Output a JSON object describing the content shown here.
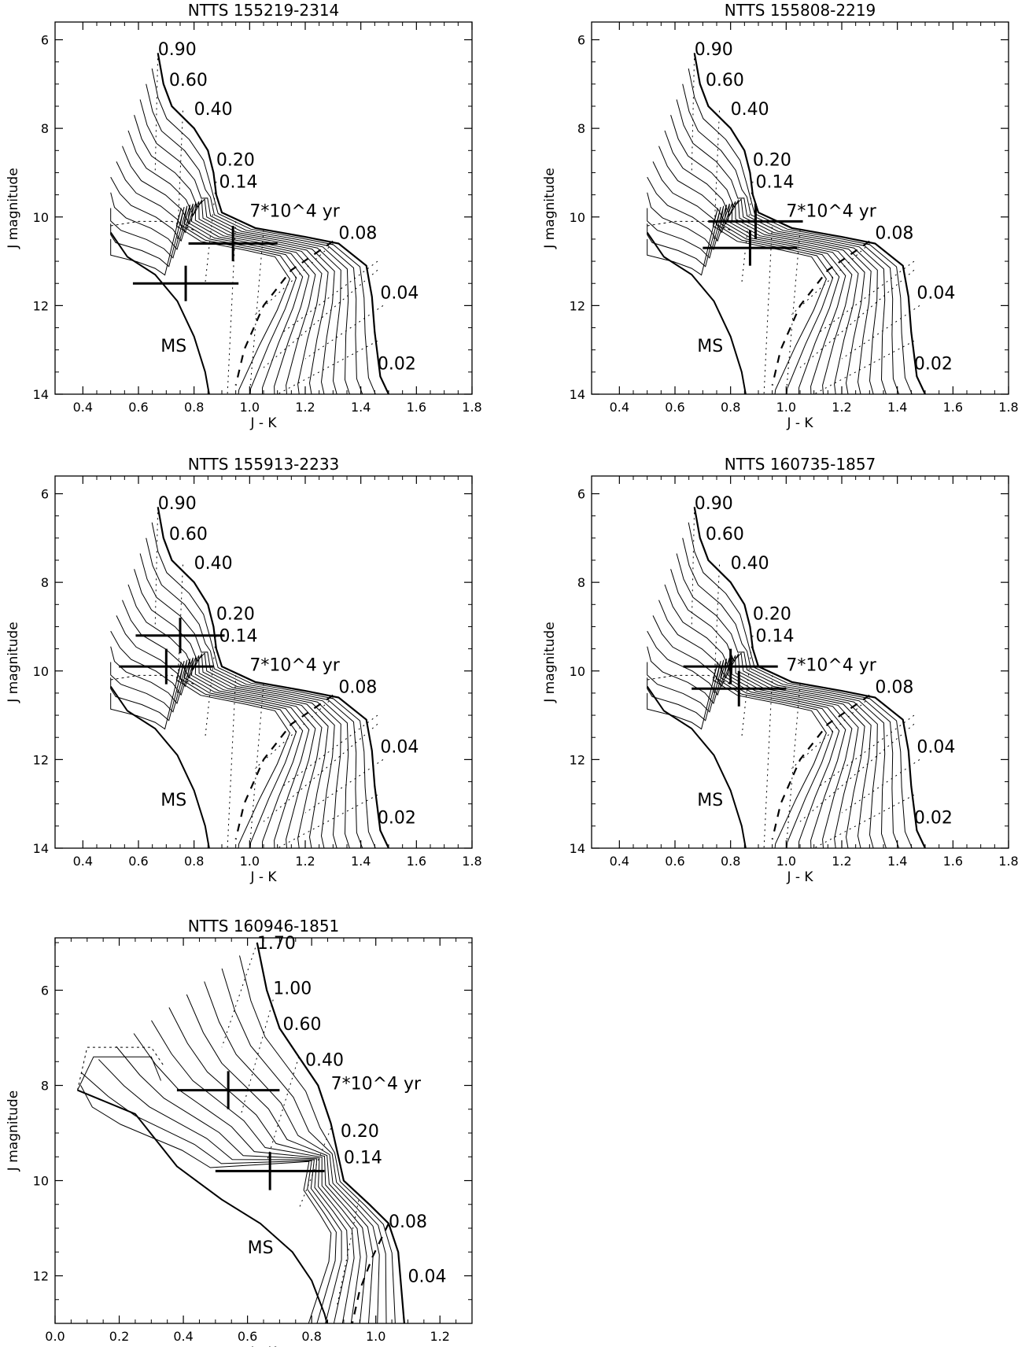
{
  "chart_data": [
    {
      "type": "scatter",
      "title": "NTTS 155219-2314",
      "xlabel": "J - K",
      "ylabel": "J magnitude",
      "xlim": [
        0.3,
        1.8
      ],
      "ylim": [
        14,
        5.6
      ],
      "y_inverted": true,
      "xticks": [
        0.4,
        0.6,
        0.8,
        1.0,
        1.2,
        1.4,
        1.6,
        1.8
      ],
      "yticks": [
        6,
        8,
        10,
        12,
        14
      ],
      "grid": false,
      "mass_labels": [
        {
          "text": "0.90",
          "x": 0.67,
          "y": 6.2
        },
        {
          "text": "0.60",
          "x": 0.71,
          "y": 6.9
        },
        {
          "text": "0.40",
          "x": 0.8,
          "y": 7.55
        },
        {
          "text": "0.20",
          "x": 0.88,
          "y": 8.7
        },
        {
          "text": "0.14",
          "x": 0.89,
          "y": 9.2
        },
        {
          "text": "0.08",
          "x": 1.32,
          "y": 10.35
        },
        {
          "text": "0.04",
          "x": 1.47,
          "y": 11.7
        },
        {
          "text": "0.02",
          "x": 1.46,
          "y": 13.3
        }
      ],
      "age_label": {
        "text": "7*10^4 yr",
        "x": 1.0,
        "y": 9.85
      },
      "ms_label": {
        "text": "MS",
        "x": 0.68,
        "y": 12.9
      },
      "points": [
        {
          "x": 0.94,
          "y": 10.6,
          "xerr": 0.16,
          "yerr": 0.4
        },
        {
          "x": 0.77,
          "y": 11.5,
          "xerr": 0.19,
          "yerr": 0.4
        }
      ]
    },
    {
      "type": "scatter",
      "title": "NTTS 155808-2219",
      "xlabel": "J - K",
      "ylabel": "J magnitude",
      "xlim": [
        0.3,
        1.8
      ],
      "ylim": [
        14,
        5.6
      ],
      "y_inverted": true,
      "xticks": [
        0.4,
        0.6,
        0.8,
        1.0,
        1.2,
        1.4,
        1.6,
        1.8
      ],
      "yticks": [
        6,
        8,
        10,
        12,
        14
      ],
      "grid": false,
      "mass_labels": [
        {
          "text": "0.90",
          "x": 0.67,
          "y": 6.2
        },
        {
          "text": "0.60",
          "x": 0.71,
          "y": 6.9
        },
        {
          "text": "0.40",
          "x": 0.8,
          "y": 7.55
        },
        {
          "text": "0.20",
          "x": 0.88,
          "y": 8.7
        },
        {
          "text": "0.14",
          "x": 0.89,
          "y": 9.2
        },
        {
          "text": "0.08",
          "x": 1.32,
          "y": 10.35
        },
        {
          "text": "0.04",
          "x": 1.47,
          "y": 11.7
        },
        {
          "text": "0.02",
          "x": 1.46,
          "y": 13.3
        }
      ],
      "age_label": {
        "text": "7*10^4 yr",
        "x": 1.0,
        "y": 9.85
      },
      "ms_label": {
        "text": "MS",
        "x": 0.68,
        "y": 12.9
      },
      "points": [
        {
          "x": 0.89,
          "y": 10.1,
          "xerr": 0.17,
          "yerr": 0.4
        },
        {
          "x": 0.87,
          "y": 10.7,
          "xerr": 0.17,
          "yerr": 0.4
        }
      ]
    },
    {
      "type": "scatter",
      "title": "NTTS 155913-2233",
      "xlabel": "J - K",
      "ylabel": "J magnitude",
      "xlim": [
        0.3,
        1.8
      ],
      "ylim": [
        14,
        5.6
      ],
      "y_inverted": true,
      "xticks": [
        0.4,
        0.6,
        0.8,
        1.0,
        1.2,
        1.4,
        1.6,
        1.8
      ],
      "yticks": [
        6,
        8,
        10,
        12,
        14
      ],
      "grid": false,
      "mass_labels": [
        {
          "text": "0.90",
          "x": 0.67,
          "y": 6.2
        },
        {
          "text": "0.60",
          "x": 0.71,
          "y": 6.9
        },
        {
          "text": "0.40",
          "x": 0.8,
          "y": 7.55
        },
        {
          "text": "0.20",
          "x": 0.88,
          "y": 8.7
        },
        {
          "text": "0.14",
          "x": 0.89,
          "y": 9.2
        },
        {
          "text": "0.08",
          "x": 1.32,
          "y": 10.35
        },
        {
          "text": "0.04",
          "x": 1.47,
          "y": 11.7
        },
        {
          "text": "0.02",
          "x": 1.46,
          "y": 13.3
        }
      ],
      "age_label": {
        "text": "7*10^4 yr",
        "x": 1.0,
        "y": 9.85
      },
      "ms_label": {
        "text": "MS",
        "x": 0.68,
        "y": 12.9
      },
      "points": [
        {
          "x": 0.75,
          "y": 9.2,
          "xerr": 0.16,
          "yerr": 0.4
        },
        {
          "x": 0.7,
          "y": 9.9,
          "xerr": 0.17,
          "yerr": 0.4
        }
      ]
    },
    {
      "type": "scatter",
      "title": "NTTS 160735-1857",
      "xlabel": "J - K",
      "ylabel": "J magnitude",
      "xlim": [
        0.3,
        1.8
      ],
      "ylim": [
        14,
        5.6
      ],
      "y_inverted": true,
      "xticks": [
        0.4,
        0.6,
        0.8,
        1.0,
        1.2,
        1.4,
        1.6,
        1.8
      ],
      "yticks": [
        6,
        8,
        10,
        12,
        14
      ],
      "grid": false,
      "mass_labels": [
        {
          "text": "0.90",
          "x": 0.67,
          "y": 6.2
        },
        {
          "text": "0.60",
          "x": 0.71,
          "y": 6.9
        },
        {
          "text": "0.40",
          "x": 0.8,
          "y": 7.55
        },
        {
          "text": "0.20",
          "x": 0.88,
          "y": 8.7
        },
        {
          "text": "0.14",
          "x": 0.89,
          "y": 9.2
        },
        {
          "text": "0.08",
          "x": 1.32,
          "y": 10.35
        },
        {
          "text": "0.04",
          "x": 1.47,
          "y": 11.7
        },
        {
          "text": "0.02",
          "x": 1.46,
          "y": 13.3
        }
      ],
      "age_label": {
        "text": "7*10^4 yr",
        "x": 1.0,
        "y": 9.85
      },
      "ms_label": {
        "text": "MS",
        "x": 0.68,
        "y": 12.9
      },
      "points": [
        {
          "x": 0.8,
          "y": 9.9,
          "xerr": 0.17,
          "yerr": 0.4
        },
        {
          "x": 0.83,
          "y": 10.4,
          "xerr": 0.17,
          "yerr": 0.4
        }
      ]
    },
    {
      "type": "scatter",
      "title": "NTTS 160946-1851",
      "xlabel": "J - K",
      "ylabel": "J magnitude",
      "xlim": [
        0.0,
        1.3
      ],
      "ylim": [
        13,
        4.9
      ],
      "y_inverted": true,
      "xticks": [
        0.0,
        0.2,
        0.4,
        0.6,
        0.8,
        1.0,
        1.2
      ],
      "yticks": [
        6,
        8,
        10,
        12
      ],
      "grid": false,
      "mass_labels": [
        {
          "text": "1.70",
          "x": 0.63,
          "y": 5.0
        },
        {
          "text": "1.00",
          "x": 0.68,
          "y": 5.95
        },
        {
          "text": "0.60",
          "x": 0.71,
          "y": 6.7
        },
        {
          "text": "0.40",
          "x": 0.78,
          "y": 7.45
        },
        {
          "text": "0.20",
          "x": 0.89,
          "y": 8.95
        },
        {
          "text": "0.14",
          "x": 0.9,
          "y": 9.5
        },
        {
          "text": "0.08",
          "x": 1.04,
          "y": 10.85
        },
        {
          "text": "0.04",
          "x": 1.1,
          "y": 12.0
        }
      ],
      "age_label": {
        "text": "7*10^4 yr",
        "x": 0.86,
        "y": 7.95
      },
      "ms_label": {
        "text": "MS",
        "x": 0.6,
        "y": 11.4
      },
      "points": [
        {
          "x": 0.54,
          "y": 8.1,
          "xerr": 0.16,
          "yerr": 0.4
        },
        {
          "x": 0.67,
          "y": 9.8,
          "xerr": 0.17,
          "yerr": 0.4
        }
      ]
    }
  ]
}
